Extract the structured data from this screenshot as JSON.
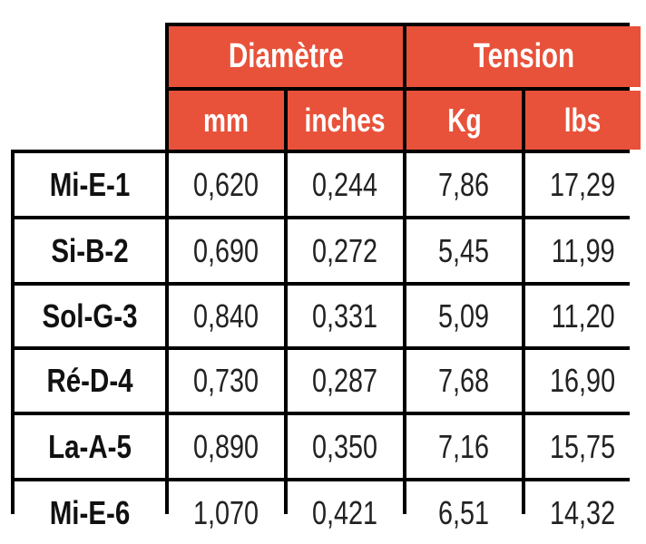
{
  "table": {
    "groups": [
      "Diamètre",
      "Tension"
    ],
    "units": [
      "mm",
      "inches",
      "Kg",
      "lbs"
    ],
    "rows": [
      {
        "label": "Mi-E-1",
        "values": [
          "0,620",
          "0,244",
          "7,86",
          "17,29"
        ]
      },
      {
        "label": "Si-B-2",
        "values": [
          "0,690",
          "0,272",
          "5,45",
          "11,99"
        ]
      },
      {
        "label": "Sol-G-3",
        "values": [
          "0,840",
          "0,331",
          "5,09",
          "11,20"
        ]
      },
      {
        "label": "Ré-D-4",
        "values": [
          "0,730",
          "0,287",
          "7,68",
          "16,90"
        ]
      },
      {
        "label": "La-A-5",
        "values": [
          "0,890",
          "0,350",
          "7,16",
          "15,75"
        ]
      },
      {
        "label": "Mi-E-6",
        "values": [
          "1,070",
          "0,421",
          "6,51",
          "14,32"
        ]
      }
    ]
  },
  "colors": {
    "header_bg": "#e8523a",
    "header_text": "#ffffff",
    "border": "#000000"
  }
}
